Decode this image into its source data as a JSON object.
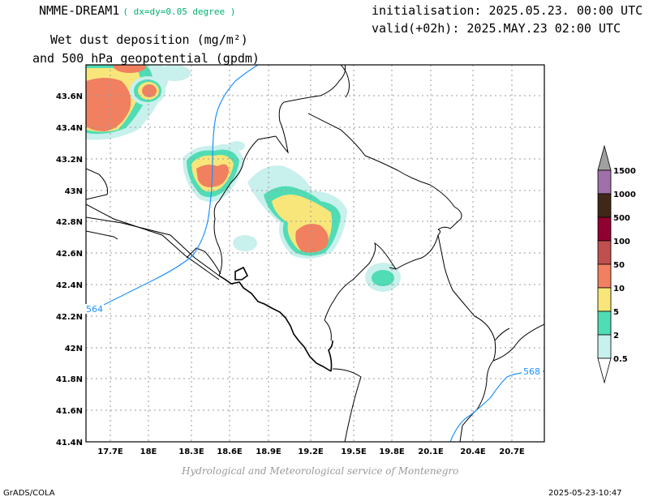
{
  "header": {
    "model": "NMME-DREAM1",
    "resolution": "( dx=dy=0.05 degree )",
    "initialisation": "initialisation: 2025.05.23. 00:00 UTC",
    "valid": "valid(+02h): 2025.MAY.23 02:00 UTC",
    "variable_line1": "Wet dust deposition (mg/m²)",
    "variable_line2": "and 500 hPa geopotential (gpdm)"
  },
  "map": {
    "lat_labels": [
      "43.6N",
      "43.4N",
      "43.2N",
      "43N",
      "42.8N",
      "42.6N",
      "42.4N",
      "42.2N",
      "42N",
      "41.8N",
      "41.6N",
      "41.4N"
    ],
    "lon_labels": [
      "17.7E",
      "18E",
      "18.3E",
      "18.6E",
      "18.9E",
      "19.2E",
      "19.5E",
      "19.8E",
      "20.1E",
      "20.4E",
      "20.7E"
    ],
    "contour_labels": [
      "564",
      "568"
    ],
    "contour_color": "#1e90ff",
    "grid": true
  },
  "legend": {
    "levels": [
      "0.5",
      "2",
      "5",
      "10",
      "50",
      "100",
      "500",
      "1000",
      "1500"
    ],
    "colors": [
      "#c8f0ec",
      "#50dcb4",
      "#f8e67a",
      "#f08060",
      "#c05050",
      "#900030",
      "#402818",
      "#a070a8"
    ]
  },
  "footer": {
    "credit": "Hydrological and Meteorological service of Montenegro",
    "software": "GrADS/COLA",
    "timestamp": "2025-05-23-10:47"
  }
}
